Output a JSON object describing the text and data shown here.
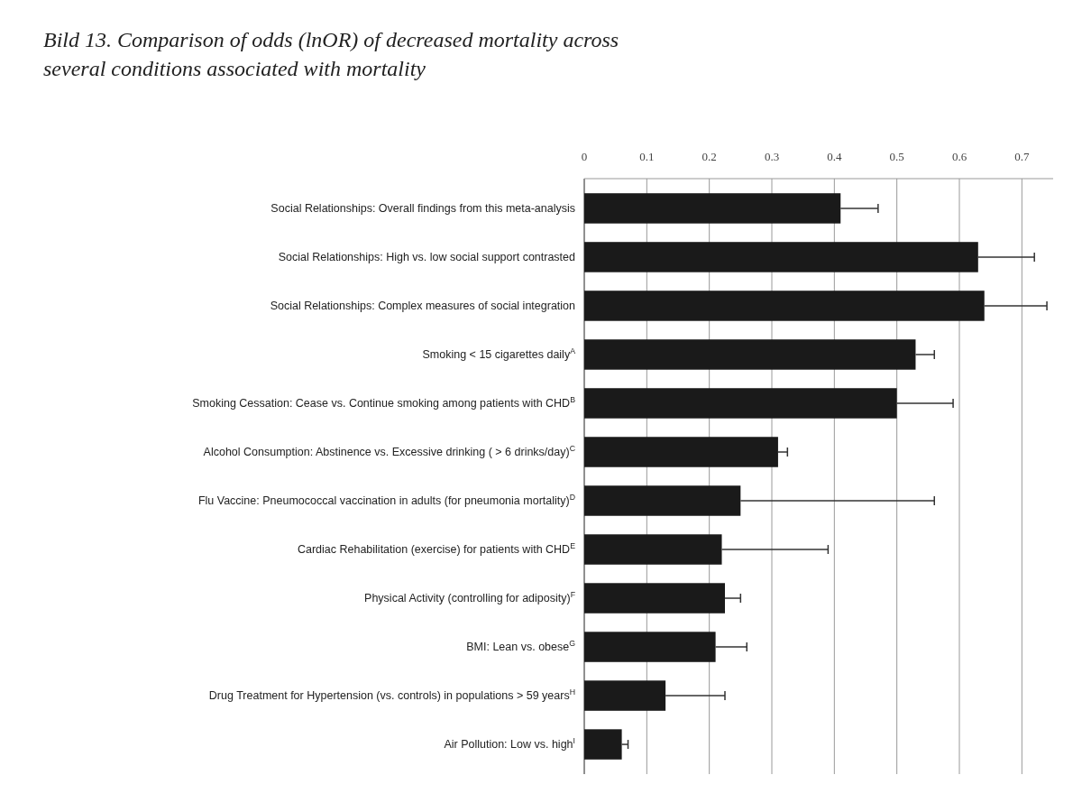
{
  "chart_data": {
    "type": "bar",
    "orientation": "horizontal",
    "title": "Bild 13. Comparison of odds (lnOR) of decreased mortality across several conditions associated with mortality",
    "categories": [
      "Social Relationships: Overall findings from this meta-analysis",
      "Social Relationships: High vs. low social support contrasted",
      "Social Relationships: Complex measures of social integration",
      "Smoking < 15 cigarettes daily$^{A}$",
      "Smoking Cessation: Cease vs. Continue smoking among patients with CHD$^{B}$",
      "Alcohol Consumption: Abstinence vs. Excessive drinking ( > 6 drinks/day)$^{C}$",
      "Flu Vaccine: Pneumococcal vaccination in adults (for pneumonia mortality)$^{D}$",
      "Cardiac Rehabilitation (exercise) for patients with CHD$^{E}$",
      "Physical Activity (controlling for adiposity)$^{F}$",
      "BMI: Lean vs. obese$^{G}$",
      "Drug Treatment for Hypertension (vs. controls) in populations > 59 years$^{H}$",
      "Air Pollution: Low vs. high$^{I}$"
    ],
    "values": [
      0.41,
      0.63,
      0.64,
      0.53,
      0.5,
      0.31,
      0.25,
      0.22,
      0.225,
      0.21,
      0.13,
      0.06
    ],
    "errors": [
      [
        0.41,
        0.47
      ],
      [
        0.63,
        0.72
      ],
      [
        0.64,
        0.74
      ],
      [
        0.53,
        0.56
      ],
      [
        0.5,
        0.59
      ],
      [
        0.31,
        0.325
      ],
      [
        0.25,
        0.56
      ],
      [
        0.22,
        0.39
      ],
      [
        0.225,
        0.25
      ],
      [
        0.21,
        0.26
      ],
      [
        0.13,
        0.225
      ],
      [
        0.06,
        0.07
      ]
    ],
    "color": "#1a1a1a",
    "xlim": [
      0,
      0.75
    ],
    "xticks": [
      0,
      0.1,
      0.2,
      0.3,
      0.4,
      0.5,
      0.6,
      0.7
    ],
    "grid": "x"
  }
}
